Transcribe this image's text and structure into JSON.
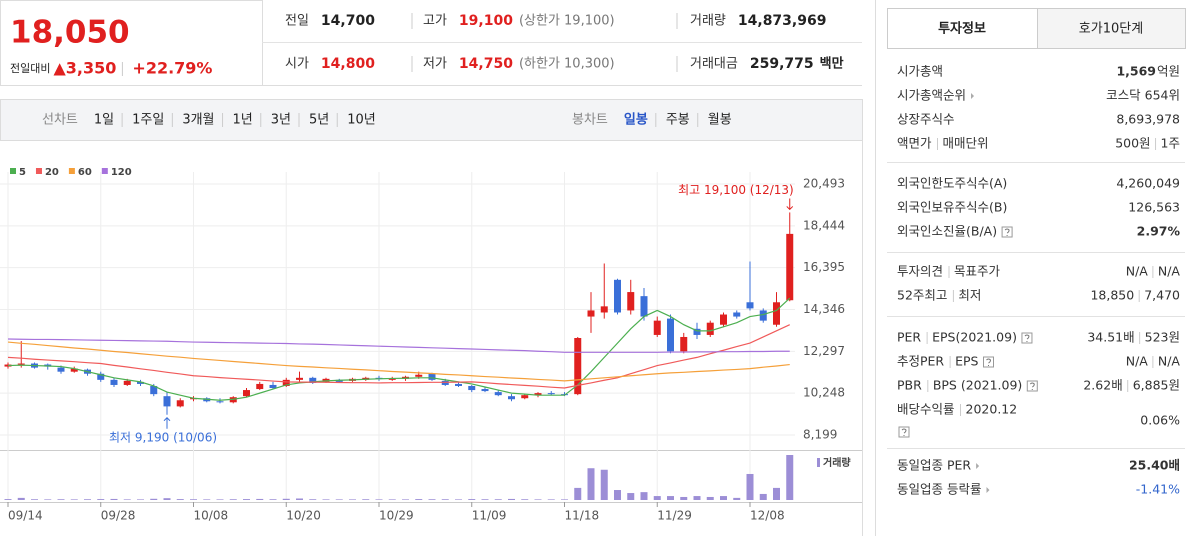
{
  "header": {
    "price": "18,050",
    "color": "#e0201f",
    "change_label": "전일대비",
    "change": "▲3,350",
    "change_rate": "+22.79%",
    "info": [
      [
        {
          "label": "전일",
          "value": "14,700"
        },
        {
          "label": "고가",
          "value": "19,100",
          "color": "#e0201f",
          "extra": "(상한가 19,100)"
        },
        {
          "label": "거래량",
          "value": "14,873,969"
        }
      ],
      [
        {
          "label": "시가",
          "value": "14,800",
          "color": "#e0201f"
        },
        {
          "label": "저가",
          "value": "14,750",
          "color": "#e0201f",
          "extra": "(하한가 10,300)"
        },
        {
          "label": "거래대금",
          "value": "259,775",
          "unit": "백만"
        }
      ]
    ]
  },
  "tabs": {
    "line_chart": "선차트",
    "line_periods": [
      "1일",
      "1주일",
      "3개월",
      "1년",
      "3년",
      "5년",
      "10년"
    ],
    "candle_chart": "봉차트",
    "candle_periods": [
      "일봉",
      "주봉",
      "월봉"
    ],
    "active_candle": 0
  },
  "chart_data": {
    "type": "candlestick",
    "categories": [
      "09/14",
      null,
      null,
      null,
      null,
      null,
      null,
      "09/28",
      null,
      null,
      null,
      null,
      null,
      null,
      "10/08",
      null,
      null,
      null,
      null,
      null,
      null,
      "10/20",
      null,
      null,
      null,
      null,
      null,
      null,
      "10/29",
      null,
      null,
      null,
      null,
      null,
      null,
      "11/09",
      null,
      null,
      null,
      null,
      null,
      null,
      "11/18",
      null,
      null,
      null,
      null,
      null,
      null,
      "11/29",
      null,
      null,
      null,
      null,
      null,
      null,
      "12/08",
      null,
      null,
      null
    ],
    "open": [
      11550,
      11650,
      11700,
      11650,
      11500,
      11300,
      11400,
      11200,
      10900,
      10650,
      10800,
      10600,
      10100,
      9600,
      9950,
      10000,
      9850,
      9800,
      10100,
      10450,
      10650,
      10600,
      10900,
      11000,
      10800,
      10900,
      10850,
      10900,
      11000,
      10900,
      10950,
      11050,
      11200,
      10850,
      10700,
      10600,
      10450,
      10300,
      10100,
      10000,
      10150,
      10250,
      10200,
      10200,
      14000,
      14200,
      15800,
      14300,
      15000,
      13100,
      13900,
      12300,
      13400,
      13100,
      13600,
      14200,
      14700,
      14300,
      13600,
      14800
    ],
    "high": [
      11750,
      12800,
      11750,
      11700,
      11600,
      11550,
      11450,
      11300,
      11000,
      10950,
      10900,
      10700,
      10300,
      10000,
      10100,
      10050,
      10000,
      10100,
      10500,
      10800,
      10800,
      11000,
      11300,
      11050,
      11000,
      10950,
      11000,
      11050,
      11100,
      11050,
      11100,
      11300,
      11250,
      10950,
      10800,
      10650,
      10550,
      10400,
      10200,
      10200,
      10300,
      10350,
      10300,
      13000,
      15200,
      16600,
      15850,
      15800,
      15400,
      14000,
      14100,
      13200,
      13700,
      13800,
      14200,
      14300,
      16700,
      14400,
      15200,
      19100
    ],
    "low": [
      11450,
      11500,
      11450,
      11400,
      11200,
      11250,
      11100,
      10800,
      10550,
      10600,
      10600,
      10100,
      9190,
      9550,
      9850,
      9800,
      9750,
      9750,
      10050,
      10400,
      10450,
      10550,
      10750,
      10700,
      10750,
      10750,
      10800,
      10850,
      10850,
      10850,
      10850,
      10950,
      10850,
      10600,
      10550,
      10300,
      10300,
      10100,
      9850,
      9950,
      10050,
      10150,
      10100,
      10150,
      13200,
      13900,
      14100,
      14100,
      13800,
      13000,
      12200,
      12200,
      12900,
      13000,
      13500,
      13900,
      14300,
      13700,
      13500,
      14750
    ],
    "close": [
      11650,
      11700,
      11500,
      11550,
      11300,
      11450,
      11200,
      10900,
      10650,
      10850,
      10700,
      10200,
      9600,
      9900,
      10000,
      9850,
      9800,
      10050,
      10400,
      10700,
      10500,
      10900,
      11000,
      10750,
      10950,
      10800,
      10950,
      11000,
      10950,
      10950,
      11050,
      11150,
      10900,
      10650,
      10600,
      10400,
      10350,
      10150,
      9950,
      10150,
      10250,
      10200,
      10150,
      12950,
      14300,
      14500,
      14200,
      15200,
      14000,
      13800,
      12300,
      13000,
      13100,
      13700,
      14100,
      14000,
      14400,
      13800,
      14700,
      18050
    ],
    "up_color": "#e0201f",
    "down_color": "#3a6fd8",
    "series": [
      {
        "name": "5",
        "color": "#4caf50",
        "values": [
          11600,
          11620,
          11600,
          11580,
          11550,
          11450,
          11300,
          11150,
          11000,
          10900,
          10800,
          10600,
          10300,
          10150,
          10000,
          9950,
          9900,
          9950,
          10050,
          10250,
          10450,
          10650,
          10750,
          10800,
          10850,
          10880,
          10900,
          10930,
          10950,
          10970,
          10980,
          11000,
          11000,
          10900,
          10800,
          10700,
          10550,
          10400,
          10250,
          10200,
          10150,
          10150,
          10150,
          10650,
          11300,
          12000,
          12700,
          13400,
          14000,
          14300,
          14000,
          13600,
          13300,
          13300,
          13500,
          13700,
          14000,
          14100,
          14300,
          14900
        ]
      },
      {
        "name": "20",
        "color": "#f05a5a",
        "values": [
          12000,
          11960,
          11910,
          11870,
          11830,
          11790,
          11740,
          11700,
          11610,
          11530,
          11440,
          11360,
          11270,
          11190,
          11100,
          11060,
          11010,
          10970,
          10930,
          10890,
          10840,
          10800,
          10790,
          10790,
          10780,
          10770,
          10760,
          10760,
          10750,
          10760,
          10760,
          10770,
          10780,
          10780,
          10790,
          10800,
          10760,
          10710,
          10670,
          10630,
          10590,
          10540,
          10500,
          10630,
          10750,
          10880,
          11000,
          11200,
          11400,
          11600,
          11730,
          11870,
          12000,
          12180,
          12350,
          12530,
          12700,
          13000,
          13300,
          13600
        ]
      },
      {
        "name": "60",
        "color": "#f5a03a",
        "values": [
          12750,
          12690,
          12640,
          12580,
          12520,
          12460,
          12410,
          12350,
          12290,
          12240,
          12180,
          12120,
          12060,
          12010,
          11950,
          11900,
          11850,
          11800,
          11750,
          11700,
          11650,
          11600,
          11560,
          11530,
          11490,
          11460,
          11420,
          11390,
          11350,
          11310,
          11280,
          11240,
          11210,
          11170,
          11140,
          11100,
          11060,
          11030,
          10990,
          10960,
          10920,
          10890,
          10850,
          10900,
          10950,
          11000,
          11050,
          11100,
          11150,
          11200,
          11240,
          11270,
          11310,
          11340,
          11380,
          11410,
          11450,
          11520,
          11580,
          11650
        ]
      },
      {
        "name": "120",
        "color": "#a672dc",
        "values": [
          12900,
          12890,
          12880,
          12880,
          12870,
          12860,
          12850,
          12840,
          12830,
          12820,
          12810,
          12800,
          12790,
          12770,
          12750,
          12740,
          12730,
          12720,
          12710,
          12700,
          12690,
          12680,
          12660,
          12650,
          12630,
          12610,
          12590,
          12570,
          12550,
          12530,
          12510,
          12490,
          12470,
          12450,
          12430,
          12410,
          12390,
          12370,
          12350,
          12330,
          12300,
          12280,
          12250,
          12250,
          12250,
          12250,
          12250,
          12250,
          12250,
          12250,
          12260,
          12260,
          12270,
          12270,
          12280,
          12280,
          12290,
          12290,
          12300,
          12300
        ]
      }
    ],
    "volume": {
      "name": "거래량",
      "color": "#9c8ed6",
      "values": [
        300000,
        700000,
        250000,
        200000,
        250000,
        200000,
        250000,
        300000,
        350000,
        200000,
        200000,
        400000,
        600000,
        300000,
        250000,
        200000,
        200000,
        250000,
        300000,
        350000,
        250000,
        400000,
        500000,
        250000,
        200000,
        200000,
        200000,
        250000,
        200000,
        200000,
        200000,
        300000,
        250000,
        250000,
        200000,
        300000,
        250000,
        250000,
        350000,
        250000,
        200000,
        200000,
        200000,
        4000000,
        10500000,
        10000000,
        3300000,
        2300000,
        2600000,
        1300000,
        1300000,
        1000000,
        1300000,
        1000000,
        1300000,
        700000,
        8600000,
        2000000,
        4000000,
        14873969
      ]
    },
    "ylim": [
      7562,
      20885
    ],
    "yticks": [
      {
        "value": 8199,
        "label": "8,199"
      },
      {
        "value": 10248,
        "label": "10,248"
      },
      {
        "value": 12297,
        "label": "12,297"
      },
      {
        "value": 14346,
        "label": "14,346"
      },
      {
        "value": 16395,
        "label": "16,395"
      },
      {
        "value": 18444,
        "label": "18,444"
      },
      {
        "value": 20493,
        "label": "20,493"
      }
    ],
    "grid": true,
    "annotations": {
      "high": "최고 19,100 (12/13)",
      "low": "최저 9,190 (10/06)",
      "high_color": "#e0201f",
      "low_color": "#3a6fd8"
    }
  },
  "side_panel": {
    "tabs": [
      "투자정보",
      "호가10단계"
    ],
    "sections": [
      {
        "rows": [
          {
            "label": [
              "시가총액"
            ],
            "value": [
              "1,569"
            ],
            "unit": "억원",
            "bold": true
          },
          {
            "label": [
              "시가총액순위"
            ],
            "arrow": true,
            "value": [
              "코스닥 654위"
            ]
          },
          {
            "label": [
              "상장주식수"
            ],
            "value": [
              "8,693,978"
            ]
          },
          {
            "label": [
              "액면가",
              "매매단위"
            ],
            "value": [
              "500원",
              "1주"
            ]
          }
        ]
      },
      {
        "rows": [
          {
            "label": [
              "외국인한도주식수(A)"
            ],
            "value": [
              "4,260,049"
            ]
          },
          {
            "label": [
              "외국인보유주식수(B)"
            ],
            "value": [
              "126,563"
            ]
          },
          {
            "label": [
              "외국인소진율(B/A)"
            ],
            "help": true,
            "value": [
              "2.97%"
            ],
            "bold": true
          }
        ]
      },
      {
        "rows": [
          {
            "label": [
              "투자의견",
              "목표주가"
            ],
            "value": [
              "N/A",
              "N/A"
            ]
          },
          {
            "label": [
              "52주최고",
              "최저"
            ],
            "value": [
              "18,850",
              "7,470"
            ]
          }
        ]
      },
      {
        "rows": [
          {
            "label": [
              "PER",
              "EPS(2021.09)"
            ],
            "help": true,
            "value": [
              "34.51배",
              "523원"
            ]
          },
          {
            "label": [
              "추정PER",
              "EPS"
            ],
            "help": true,
            "value": [
              "N/A",
              "N/A"
            ]
          },
          {
            "label": [
              "PBR",
              "BPS (2021.09)"
            ],
            "help": true,
            "value": [
              "2.62배",
              "6,885원"
            ]
          },
          {
            "label": [
              "배당수익률",
              "2020.12"
            ],
            "help": true,
            "wrap": true,
            "value": [
              "0.06%"
            ]
          }
        ]
      },
      {
        "rows": [
          {
            "label": [
              "동일업종 PER"
            ],
            "arrow": true,
            "value": [
              "25.40배"
            ],
            "bold": true
          },
          {
            "label": [
              "동일업종 등락률"
            ],
            "arrow": true,
            "value": [
              "-1.41%"
            ],
            "color": "#3366cc"
          }
        ]
      }
    ]
  }
}
